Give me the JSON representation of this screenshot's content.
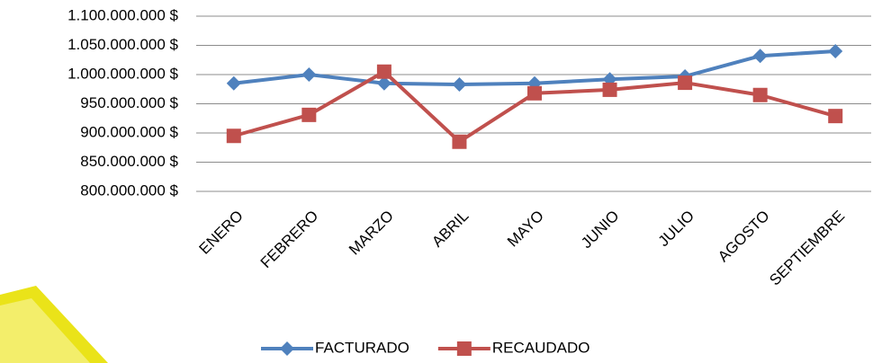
{
  "chart_data": {
    "type": "line",
    "categories": [
      "ENERO",
      "FEBRERO",
      "MARZO",
      "ABRIL",
      "MAYO",
      "JUNIO",
      "JULIO",
      "AGOSTO",
      "SEPTIEMBRE"
    ],
    "series": [
      {
        "name": "FACTURADO",
        "color": "#4f81bd",
        "marker": "diamond",
        "values": [
          985000000,
          1000000000,
          985000000,
          983000000,
          985000000,
          992000000,
          997000000,
          1032000000,
          1040000000
        ]
      },
      {
        "name": "RECAUDADO",
        "color": "#c0504d",
        "marker": "square",
        "values": [
          895000000,
          931000000,
          1005000000,
          885000000,
          968000000,
          974000000,
          986000000,
          965000000,
          929000000
        ]
      }
    ],
    "ylim": [
      800000000,
      1100000000
    ],
    "yticks": [
      {
        "value": 800000000,
        "label": "800.000.000 $"
      },
      {
        "value": 850000000,
        "label": "850.000.000 $"
      },
      {
        "value": 900000000,
        "label": "900.000.000 $"
      },
      {
        "value": 950000000,
        "label": "950.000.000 $"
      },
      {
        "value": 1000000000,
        "label": "1.000.000.000 $"
      },
      {
        "value": 1050000000,
        "label": "1.050.000.000 $"
      },
      {
        "value": 1100000000,
        "label": "1.100.000.000 $"
      }
    ],
    "grid": true,
    "legend": "bottom"
  }
}
